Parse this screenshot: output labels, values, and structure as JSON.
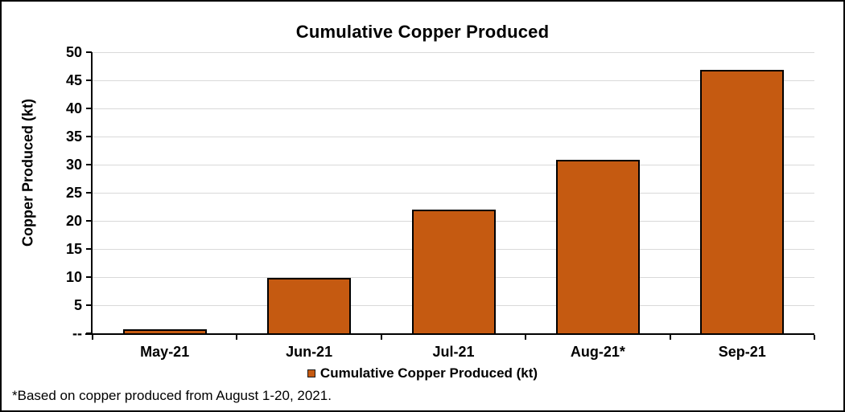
{
  "title": "Cumulative Copper Produced",
  "footnote": "*Based on copper produced from August 1-20, 2021.",
  "legend": {
    "label": "Cumulative Copper Produced (kt)",
    "marker_color": "#C55A11"
  },
  "chart_data": {
    "type": "bar",
    "title": "Cumulative Copper Produced",
    "categories": [
      "May-21",
      "Jun-21",
      "Jul-21",
      "Aug-21*",
      "Sep-21"
    ],
    "values": [
      0.7,
      9.8,
      22.0,
      30.8,
      46.8
    ],
    "xlabel": "",
    "ylabel": "Copper Produced (kt)",
    "ylim": [
      0,
      50
    ],
    "ytick_step": 5,
    "zero_tick_label": "--",
    "grid": "horizontal-only",
    "legend_entries": [
      "Cumulative Copper Produced (kt)"
    ],
    "legend_position": "bottom-center",
    "bar_color": "#C55A11",
    "bar_border_color": "#000000",
    "gridline_color": "#D9D9D9",
    "axis_color": "#000000"
  }
}
